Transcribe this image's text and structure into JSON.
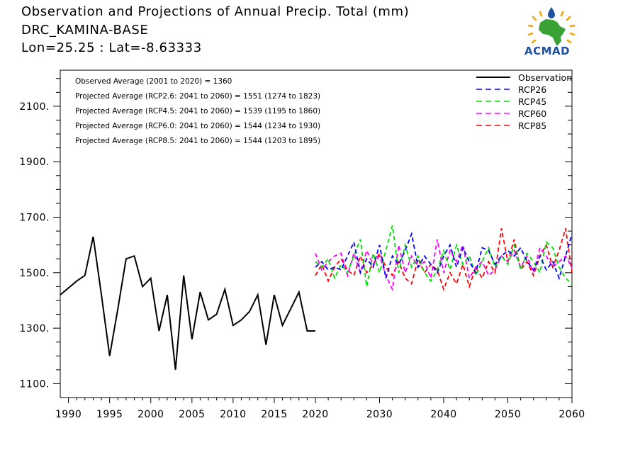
{
  "header": {
    "title": "Observation and Projections of Annual Precip. Total (mm)",
    "subtitle": "DRC_KAMINA-BASE",
    "location": "Lon=25.25 : Lat=-8.63333",
    "logo_text": "ACMAD"
  },
  "colors": {
    "observation": "#000000",
    "rcp26": "#0000ff",
    "rcp45": "#00dd00",
    "rcp60": "#ff00ff",
    "rcp85": "#ff0000",
    "logo_blue": "#1f4fa0",
    "logo_green": "#3aa135",
    "logo_orange": "#f0a000"
  },
  "chart_data": {
    "type": "line",
    "x_tick_labels": [
      "1990",
      "1995",
      "2000",
      "2005",
      "2010",
      "2015",
      "2020",
      "2030",
      "2040",
      "2050",
      "2060"
    ],
    "x_tick_years": [
      1990,
      1995,
      2000,
      2005,
      2010,
      2015,
      2020,
      2030,
      2040,
      2050,
      2060
    ],
    "y_tick_labels": [
      "1100.",
      "1300.",
      "1500.",
      "1700.",
      "1900.",
      "2100."
    ],
    "y_tick_values": [
      1100,
      1300,
      1500,
      1700,
      1900,
      2100
    ],
    "ylim": [
      1050,
      2230
    ],
    "xlim": [
      1989,
      2060
    ],
    "annotations": [
      "Observed Average (2001 to 2020) = 1360",
      "Projected Average (RCP2.6: 2041 to 2060) = 1551 (1274 to 1823)",
      "Projected Average (RCP4.5: 2041 to 2060) = 1539 (1195 to 1860)",
      "Projected Average (RCP6.0: 2041 to 2060) = 1544 (1234 to 1930)",
      "Projected Average (RCP8.5: 2041 to 2060) = 1544 (1203 to 1895)"
    ],
    "legend_position": "top-right",
    "series": [
      {
        "name": "Observation",
        "style": "solid",
        "x": [
          1989,
          1991,
          1992,
          1993,
          1994,
          1995,
          1996,
          1997,
          1998,
          1999,
          2000,
          2001,
          2002,
          2003,
          2004,
          2005,
          2006,
          2007,
          2008,
          2009,
          2010,
          2011,
          2012,
          2013,
          2014,
          2015,
          2016,
          2017,
          2018,
          2019,
          2020
        ],
        "values": [
          1420,
          1470,
          1490,
          1630,
          1420,
          1200,
          1370,
          1550,
          1560,
          1450,
          1480,
          1290,
          1420,
          1150,
          1490,
          1260,
          1430,
          1330,
          1350,
          1440,
          1310,
          1330,
          1360,
          1420,
          1240,
          1420,
          1310,
          1370,
          1430,
          1290,
          1290
        ]
      },
      {
        "name": "RCP26",
        "style": "dashed",
        "x": [
          2020,
          2021,
          2022,
          2023,
          2024,
          2025,
          2026,
          2027,
          2028,
          2029,
          2030,
          2031,
          2032,
          2033,
          2034,
          2035,
          2036,
          2037,
          2038,
          2039,
          2040,
          2041,
          2042,
          2043,
          2044,
          2045,
          2046,
          2047,
          2048,
          2049,
          2050,
          2051,
          2052,
          2053,
          2054,
          2055,
          2056,
          2057,
          2058,
          2059,
          2060
        ],
        "values": [
          1520,
          1540,
          1510,
          1520,
          1510,
          1560,
          1610,
          1500,
          1550,
          1520,
          1600,
          1480,
          1560,
          1530,
          1580,
          1640,
          1520,
          1560,
          1530,
          1500,
          1560,
          1600,
          1520,
          1590,
          1540,
          1500,
          1590,
          1580,
          1530,
          1560,
          1580,
          1560,
          1590,
          1540,
          1510,
          1560,
          1510,
          1540,
          1480,
          1560,
          1640
        ]
      },
      {
        "name": "RCP45",
        "style": "dashed",
        "x": [
          2020,
          2021,
          2022,
          2023,
          2024,
          2025,
          2026,
          2027,
          2028,
          2029,
          2030,
          2031,
          2032,
          2033,
          2034,
          2035,
          2036,
          2037,
          2038,
          2039,
          2040,
          2041,
          2042,
          2043,
          2044,
          2045,
          2046,
          2047,
          2048,
          2049,
          2050,
          2051,
          2052,
          2053,
          2054,
          2055,
          2056,
          2057,
          2058,
          2059,
          2060
        ],
        "values": [
          1540,
          1520,
          1550,
          1480,
          1530,
          1500,
          1560,
          1620,
          1450,
          1570,
          1500,
          1580,
          1670,
          1500,
          1600,
          1520,
          1560,
          1500,
          1470,
          1510,
          1580,
          1510,
          1600,
          1530,
          1560,
          1490,
          1540,
          1590,
          1520,
          1560,
          1530,
          1600,
          1510,
          1570,
          1540,
          1500,
          1610,
          1590,
          1520,
          1480,
          1460
        ]
      },
      {
        "name": "RCP60",
        "style": "dashed",
        "x": [
          2020,
          2021,
          2022,
          2023,
          2024,
          2025,
          2026,
          2027,
          2028,
          2029,
          2030,
          2031,
          2032,
          2033,
          2034,
          2035,
          2036,
          2037,
          2038,
          2039,
          2040,
          2041,
          2042,
          2043,
          2044,
          2045,
          2046,
          2047,
          2048,
          2049,
          2050,
          2051,
          2052,
          2053,
          2054,
          2055,
          2056,
          2057,
          2058,
          2059,
          2060
        ],
        "values": [
          1570,
          1510,
          1540,
          1560,
          1570,
          1490,
          1570,
          1500,
          1580,
          1530,
          1560,
          1490,
          1440,
          1600,
          1500,
          1560,
          1520,
          1540,
          1480,
          1620,
          1500,
          1580,
          1540,
          1600,
          1480,
          1520,
          1540,
          1490,
          1510,
          1560,
          1540,
          1580,
          1520,
          1560,
          1500,
          1590,
          1560,
          1520,
          1540,
          1560,
          1520
        ]
      },
      {
        "name": "RCP85",
        "style": "dashed",
        "x": [
          2020,
          2021,
          2022,
          2023,
          2024,
          2025,
          2026,
          2027,
          2028,
          2029,
          2030,
          2031,
          2032,
          2033,
          2034,
          2035,
          2036,
          2037,
          2038,
          2039,
          2040,
          2041,
          2042,
          2043,
          2044,
          2045,
          2046,
          2047,
          2048,
          2049,
          2050,
          2051,
          2052,
          2053,
          2054,
          2055,
          2056,
          2057,
          2058,
          2059,
          2060
        ],
        "values": [
          1490,
          1530,
          1470,
          1520,
          1550,
          1510,
          1490,
          1560,
          1500,
          1530,
          1570,
          1520,
          1490,
          1540,
          1480,
          1460,
          1550,
          1500,
          1530,
          1510,
          1440,
          1500,
          1460,
          1530,
          1450,
          1520,
          1480,
          1540,
          1500,
          1660,
          1540,
          1620,
          1510,
          1540,
          1490,
          1560,
          1600,
          1520,
          1580,
          1660,
          1500
        ]
      }
    ]
  }
}
